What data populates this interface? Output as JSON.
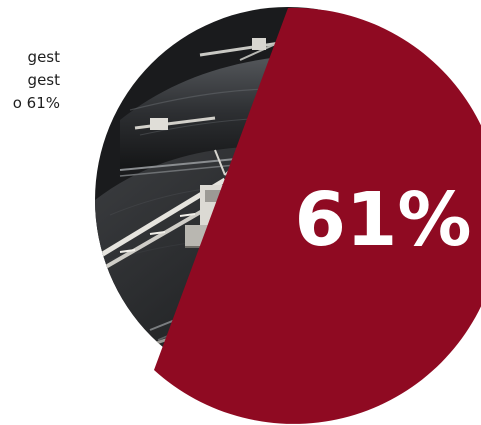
{
  "side_text": {
    "lines": [
      "gest",
      "gest",
      "o 61%"
    ]
  },
  "pie": {
    "share_percent": 61,
    "percent_label": "61%",
    "slice_color": "#8f0a22",
    "label_color": "#ffffff",
    "photo_subject": "coal-stockyard-bucket-wheel-reclaimer"
  }
}
